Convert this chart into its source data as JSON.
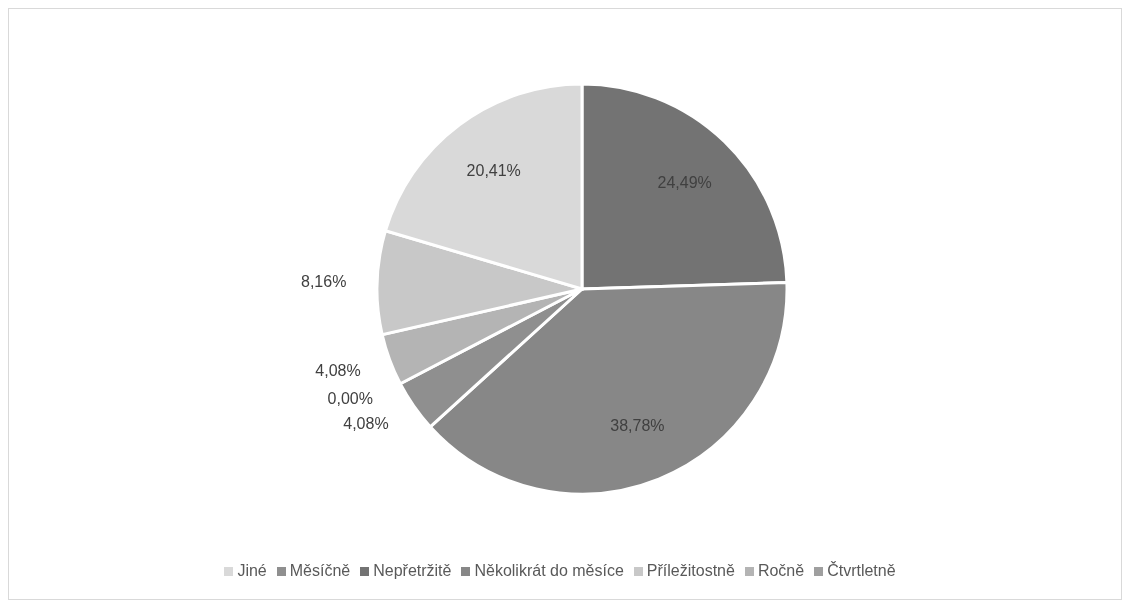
{
  "chart_data": {
    "type": "pie",
    "categories": [
      "Nepřetržitě",
      "Několikrát do měsíce",
      "Měsíčně",
      "Čtvrtletně",
      "Ročně",
      "Příležitostně",
      "Jiné"
    ],
    "values": [
      24.49,
      38.78,
      4.08,
      0.0,
      4.08,
      8.16,
      20.41
    ],
    "value_labels": [
      "24,49%",
      "38,78%",
      "4,08%",
      "0,00%",
      "4,08%",
      "8,16%",
      "20,41%"
    ],
    "colors": [
      "#737373",
      "#878787",
      "#8f8f8f",
      "#9f9f9f",
      "#b4b4b4",
      "#c8c8c8",
      "#d9d9d9"
    ],
    "legend": "bottom"
  }
}
